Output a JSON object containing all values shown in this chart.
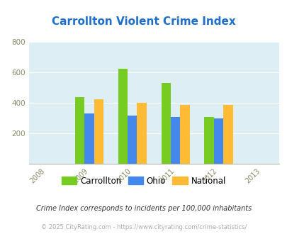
{
  "title": "Carrollton Violent Crime Index",
  "title_color": "#1e6fcc",
  "years": [
    2009,
    2010,
    2011,
    2012
  ],
  "x_ticks": [
    2008,
    2009,
    2010,
    2011,
    2012,
    2013
  ],
  "carrollton": [
    440,
    625,
    530,
    310
  ],
  "ohio": [
    330,
    315,
    310,
    300
  ],
  "national": [
    425,
    400,
    385,
    385
  ],
  "bar_colors": {
    "carrollton": "#77cc22",
    "ohio": "#4488ee",
    "national": "#ffbb33"
  },
  "ylim": [
    0,
    800
  ],
  "yticks": [
    0,
    200,
    400,
    600,
    800
  ],
  "xlim": [
    2007.6,
    2013.4
  ],
  "background_color": "#ddeef5",
  "legend_labels": [
    "Carrollton",
    "Ohio",
    "National"
  ],
  "footnote1": "Crime Index corresponds to incidents per 100,000 inhabitants",
  "footnote2": "© 2025 CityRating.com - https://www.cityrating.com/crime-statistics/",
  "bar_width": 0.22
}
